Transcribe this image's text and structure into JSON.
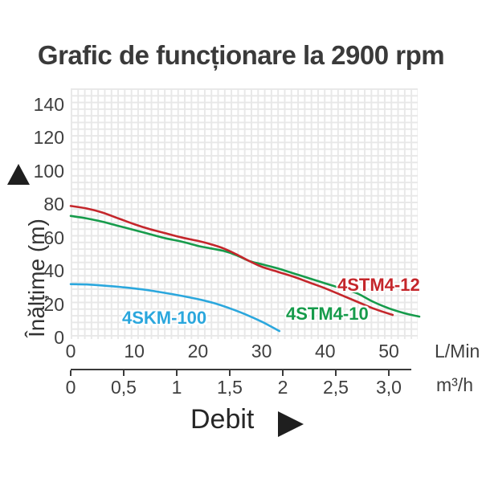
{
  "title": "Grafic de funcționare la 2900 rpm",
  "y_axis": {
    "label": "Înălțime (m)",
    "ticks": [
      "0",
      "20",
      "40",
      "60",
      "80",
      "100",
      "120",
      "140"
    ],
    "values": [
      0,
      20,
      40,
      60,
      80,
      100,
      120,
      140
    ]
  },
  "x_axis_lmin": {
    "unit": "L/Min",
    "ticks": [
      "0",
      "10",
      "20",
      "30",
      "40",
      "50"
    ],
    "values": [
      0,
      10,
      20,
      30,
      40,
      50
    ]
  },
  "x_axis_m3h": {
    "unit": "m³/h",
    "ticks": [
      "0",
      "0,5",
      "1",
      "1,5",
      "2",
      "2,5",
      "3,0"
    ],
    "values": [
      0,
      0.5,
      1,
      1.5,
      2,
      2.5,
      3.0
    ]
  },
  "x_title": "Debit",
  "icons": {
    "y_axis_arrow": "up-triangle",
    "x_axis_arrow": "right-triangle"
  },
  "chart_data": {
    "type": "line",
    "title": "Grafic de funcționare la 2900 rpm",
    "xlabel": "Debit",
    "ylabel": "Înălțime (m)",
    "x_units": [
      "L/Min",
      "m³/h"
    ],
    "xlim_lmin": [
      0,
      55
    ],
    "ylim": [
      0,
      150
    ],
    "grid": true,
    "legend": "inline-curve-labels",
    "series": [
      {
        "name": "4SKM-100",
        "color": "#2ba7dd",
        "x_lmin": [
          0,
          2.5,
          5,
          7.5,
          10,
          12.5,
          15,
          17.5,
          20,
          22.5,
          25,
          27.5,
          30,
          31.5,
          32.8
        ],
        "y_m": [
          32,
          31.8,
          31.2,
          30.4,
          29.4,
          28.2,
          26.6,
          24.9,
          23,
          20.6,
          17.5,
          13.8,
          9.5,
          6.5,
          3.8
        ]
      },
      {
        "name": "4STM4-10",
        "color": "#169b4b",
        "x_lmin": [
          0,
          2.5,
          5,
          7.5,
          10,
          12.5,
          15,
          17.5,
          20,
          22,
          24,
          26,
          28,
          30,
          32.5,
          35,
          37.5,
          40,
          42.5,
          45,
          47.5,
          50,
          52.5,
          54.8
        ],
        "y_m": [
          73,
          71.5,
          69.5,
          67,
          64.5,
          62,
          59.5,
          57.5,
          55,
          53.5,
          52,
          49.5,
          46,
          44,
          41.5,
          38.5,
          35.5,
          32.5,
          29.5,
          26.5,
          21.5,
          17.5,
          14.5,
          12.5
        ]
      },
      {
        "name": "4STM4-12",
        "color": "#c4262b",
        "x_lmin": [
          0,
          2.5,
          5,
          7.5,
          10,
          12.5,
          15,
          17.5,
          20,
          22,
          24,
          26,
          28,
          30,
          32.5,
          35,
          37.5,
          40,
          42.5,
          45,
          47.5,
          50.6
        ],
        "y_m": [
          79,
          77.5,
          75,
          71.5,
          68,
          65,
          62.5,
          60,
          58,
          56,
          53.5,
          50,
          46,
          42.5,
          39.5,
          36.5,
          33,
          29.5,
          25.5,
          21.5,
          17.5,
          13.5
        ]
      }
    ]
  }
}
